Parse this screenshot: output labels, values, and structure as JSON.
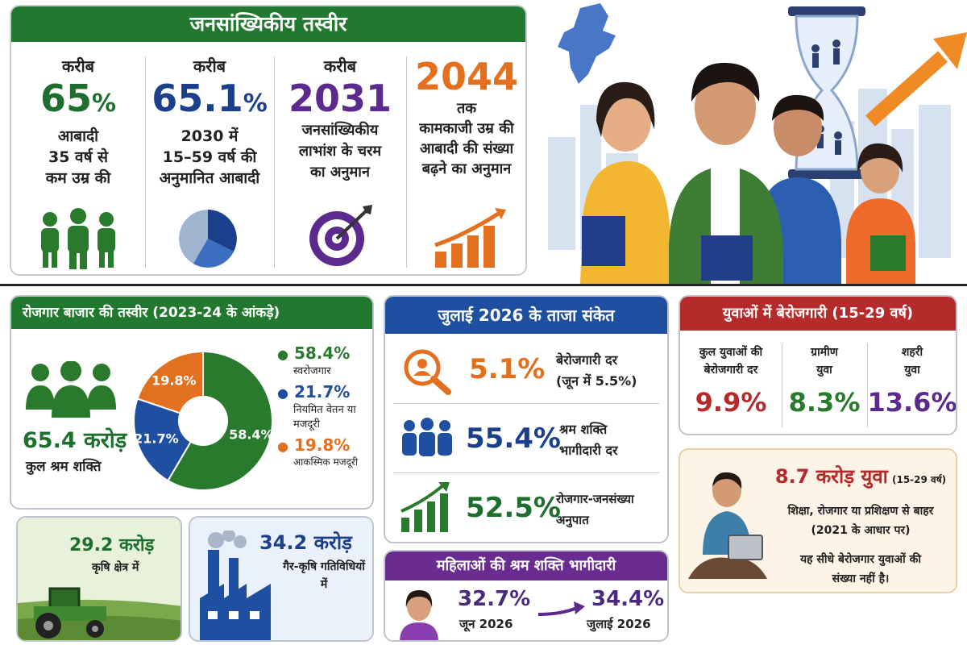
{
  "demography": {
    "title": "जनसांख्यिकीय तस्वीर",
    "stats": [
      {
        "pre": "करीब",
        "value": "65",
        "unit": "%",
        "desc": [
          "आबादी",
          "35 वर्ष से",
          "कम उम्र की"
        ],
        "color": "#1e6f2e"
      },
      {
        "pre": "करीब",
        "value": "65.1",
        "unit": "%",
        "desc": [
          "2030 में",
          "15–59 वर्ष की",
          "अनुमानित आबादी"
        ],
        "color": "#1c3f8c"
      },
      {
        "pre": "करीब",
        "value": "2031",
        "unit": "",
        "desc": [
          "जनसांख्यिकीय",
          "लाभांश के चरम",
          "का अनुमान"
        ],
        "color": "#5b2a8c"
      },
      {
        "pre": "",
        "value": "2044",
        "unit": "",
        "desc": [
          "तक",
          "कामकाजी उम्र की",
          "आबादी की संख्या",
          "बढ़ने का अनुमान"
        ],
        "color": "#e2701f"
      }
    ]
  },
  "labour": {
    "title": "रोजगार बाजार की तस्वीर (2023-24 के आंकड़े)",
    "total_value": "65.4 करोड़",
    "total_label": "कुल श्रम शक्ति",
    "legend": [
      {
        "value": "58.4%",
        "label": "स्वरोजगार",
        "color": "#2a7a2e"
      },
      {
        "value": "21.7%",
        "label": "नियमित वेतन या मजदूरी",
        "color": "#1f4fa0"
      },
      {
        "value": "19.8%",
        "label": "आकस्मिक मजदूरी",
        "color": "#e2701f"
      }
    ],
    "agri_value": "29.2 करोड़",
    "agri_label": "कृषि क्षेत्र में",
    "nonagri_value": "34.2 करोड़",
    "nonagri_label": "गैर-कृषि गतिविधियों में"
  },
  "chart_data": {
    "type": "pie",
    "categories": [
      "स्वरोजगार",
      "नियमित वेतन या मजदूरी",
      "आकस्मिक मजदूरी"
    ],
    "values": [
      58.4,
      21.7,
      19.8
    ],
    "labels": [
      "58.4%",
      "21.7%",
      "19.8%"
    ],
    "colors": [
      "#2a7a2e",
      "#1f4fa0",
      "#e2701f"
    ]
  },
  "july": {
    "title": "जुलाई 2026 के ताजा संकेत",
    "rows": [
      {
        "value": "5.1%",
        "label": [
          "बेरोजगारी दर",
          "(जून में 5.5%)"
        ]
      },
      {
        "value": "55.4%",
        "label": [
          "श्रम शक्ति",
          "भागीदारी दर"
        ]
      },
      {
        "value": "52.5%",
        "label": [
          "रोजगार-जनसंख्या",
          "अनुपात"
        ]
      }
    ]
  },
  "youth": {
    "title": "युवाओं में बेरोजगारी (15-29 वर्ष)",
    "cols": [
      {
        "label": [
          "कुल युवाओं की",
          "बेरोजगारी दर"
        ],
        "value": "9.9%",
        "color": "#b52a2a"
      },
      {
        "label": [
          "ग्रामीण",
          "युवा"
        ],
        "value": "8.3%",
        "color": "#2a7a2e"
      },
      {
        "label": [
          "शहरी",
          "युवा"
        ],
        "value": "13.6%",
        "color": "#5b2a8c"
      }
    ]
  },
  "neet": {
    "value": "8.7 करोड़ युवा",
    "note": "(15-29 वर्ष)",
    "lines": [
      "शिक्षा, रोजगार या प्रशिक्षण से बाहर",
      "(2021 के आधार पर)"
    ],
    "lines2": [
      "यह सीधे बेरोजगार युवाओं की",
      "संख्या नहीं है।"
    ]
  },
  "women": {
    "title": "महिलाओं की श्रम शक्ति भागीदारी",
    "from_value": "32.7%",
    "from_label": "जून 2026",
    "to_value": "34.4%",
    "to_label": "जुलाई 2026"
  }
}
